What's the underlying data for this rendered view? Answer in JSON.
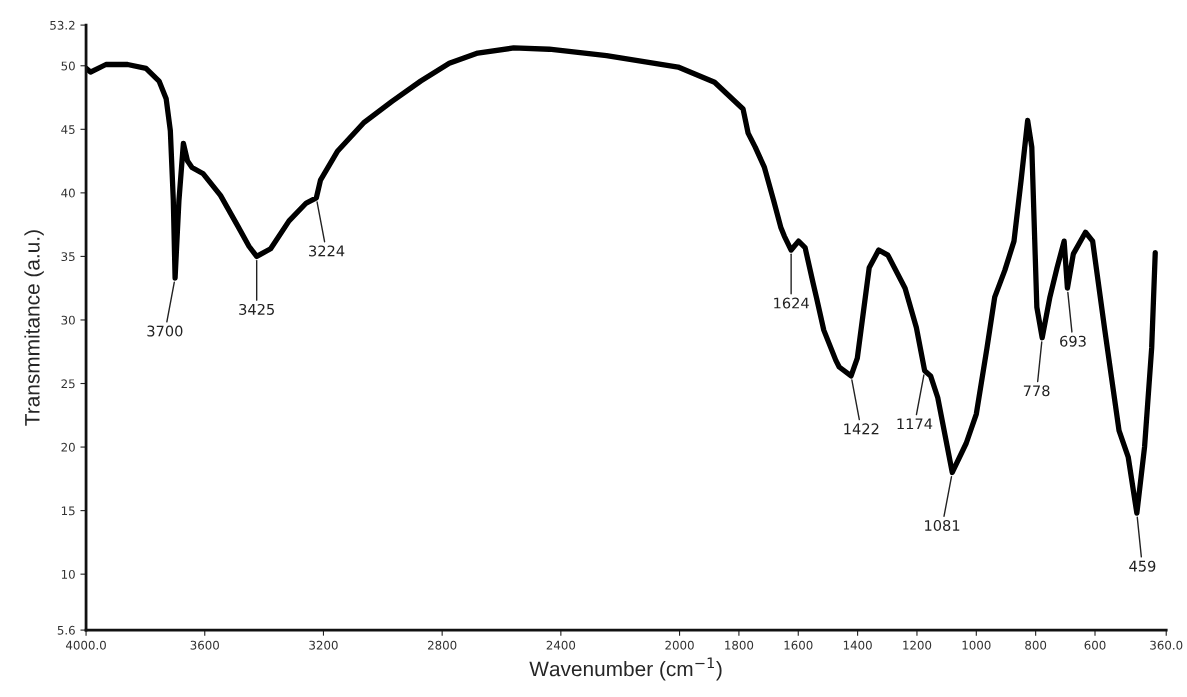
{
  "chart_data": {
    "type": "line",
    "xlabel": "Wavenumber (cm$^{−1}$)",
    "ylabel": "Transmmitance (a.u.)",
    "xlim": [
      4000,
      360
    ],
    "ylim": [
      5.6,
      53.2
    ],
    "xticks": [
      {
        "value": 4000,
        "label": "4000.0"
      },
      3600,
      3200,
      2800,
      2400,
      2000,
      1800,
      1600,
      1400,
      1200,
      1000,
      800,
      600,
      {
        "value": 360,
        "label": "360.0"
      }
    ],
    "yticks": [
      5.6,
      10,
      15,
      20,
      25,
      30,
      35,
      40,
      45,
      50,
      53.2
    ],
    "grid": false,
    "marker": "none",
    "line_style": "solid",
    "series": [
      {
        "color": "#000000",
        "x": [
          4000,
          3985,
          3933,
          3860,
          3798,
          3754,
          3730,
          3716,
          3706,
          3700,
          3687,
          3672,
          3658,
          3643,
          3605,
          3547,
          3489,
          3451,
          3425,
          3378,
          3316,
          3258,
          3224,
          3210,
          3152,
          3065,
          2969,
          2872,
          2776,
          2680,
          2559,
          2439,
          2246,
          2005,
          1882,
          1786,
          1769,
          1745,
          1714,
          1683,
          1659,
          1647,
          1624,
          1599,
          1577,
          1550,
          1538,
          1514,
          1473,
          1462,
          1422,
          1401,
          1361,
          1329,
          1298,
          1240,
          1202,
          1174,
          1154,
          1130,
          1081,
          1034,
          1000,
          964,
          938,
          904,
          873,
          849,
          827,
          813,
          796,
          778,
          752,
          728,
          704,
          693,
          673,
          632,
          608,
          567,
          519,
          488,
          459,
          433,
          409,
          397
        ],
        "values": [
          49.8,
          49.5,
          50.1,
          50.1,
          49.8,
          48.8,
          47.4,
          44.9,
          39.4,
          33.3,
          39.4,
          43.9,
          42.5,
          42.0,
          41.5,
          39.8,
          37.4,
          35.8,
          35.0,
          35.6,
          37.8,
          39.2,
          39.6,
          41.0,
          43.3,
          45.5,
          47.2,
          48.8,
          50.2,
          51.0,
          51.4,
          51.3,
          50.8,
          49.9,
          48.7,
          46.6,
          44.7,
          43.6,
          42.0,
          39.4,
          37.3,
          36.6,
          35.5,
          36.2,
          35.7,
          32.9,
          31.7,
          29.2,
          26.8,
          26.3,
          25.6,
          27.0,
          34.1,
          35.5,
          35.1,
          32.5,
          29.4,
          26.0,
          25.6,
          23.9,
          18.0,
          20.3,
          22.6,
          27.8,
          31.8,
          33.9,
          36.2,
          41.0,
          45.7,
          43.6,
          31.0,
          28.6,
          31.8,
          34.1,
          36.2,
          32.5,
          35.2,
          36.9,
          36.2,
          29.2,
          21.3,
          19.2,
          14.8,
          20.0,
          27.8,
          35.3
        ]
      }
    ],
    "annotations": [
      {
        "text": "3700",
        "x": 3700,
        "y": 33.3
      },
      {
        "text": "3425",
        "x": 3425,
        "y": 35.0
      },
      {
        "text": "3224",
        "x": 3224,
        "y": 39.6
      },
      {
        "text": "1624",
        "x": 1624,
        "y": 35.5
      },
      {
        "text": "1422",
        "x": 1422,
        "y": 25.6
      },
      {
        "text": "1174",
        "x": 1174,
        "y": 26.0
      },
      {
        "text": "1081",
        "x": 1081,
        "y": 18.0
      },
      {
        "text": "778",
        "x": 778,
        "y": 28.6
      },
      {
        "text": "693",
        "x": 693,
        "y": 32.5
      },
      {
        "text": "459",
        "x": 459,
        "y": 14.8
      }
    ]
  }
}
